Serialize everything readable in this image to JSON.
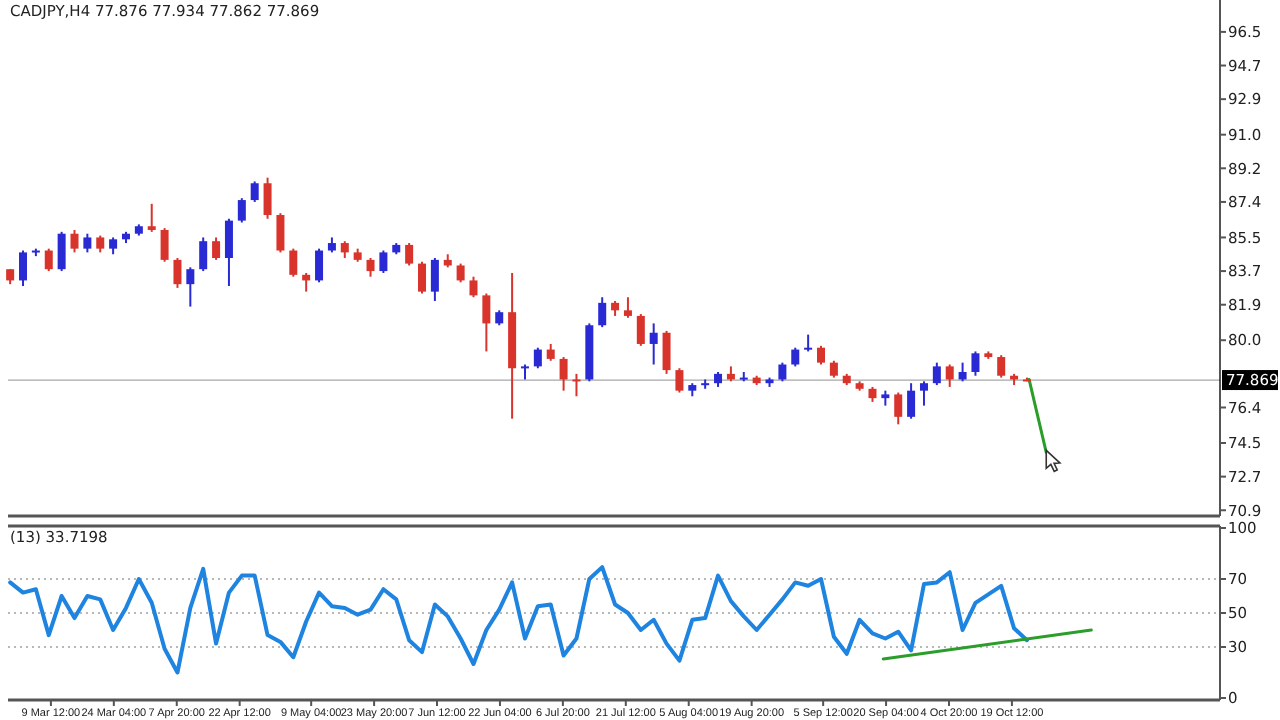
{
  "chart_data": [
    {
      "type": "candlestick",
      "title": "CADJPY,H4  77.876 77.934 77.862 77.869",
      "xlim": [
        "--02-28T12:00",
        "--12-07T00:00"
      ],
      "ylim": [
        70.7,
        98.1
      ],
      "yticks": [
        96.5,
        94.7,
        92.9,
        {
          "value": 91.0,
          "label": "91.0"
        },
        89.2,
        87.4,
        85.5,
        83.7,
        81.9,
        {
          "value": 80.0,
          "label": "80.0"
        },
        76.4,
        74.5,
        72.7,
        70.9
      ],
      "tick_labels": "y",
      "ref_lines": [
        {
          "axis": "y",
          "value": 77.869,
          "label": "77.869",
          "color": "#000000"
        }
      ],
      "series": [
        {
          "type": "candlestick",
          "x": [
            "--02-29",
            "--03-03",
            "--03-06",
            "--03-09",
            "--03-12",
            "--03-15",
            "--03-18",
            "--03-21",
            "--03-24",
            "--03-27",
            "--03-30",
            "--04-02",
            "--04-05",
            "--04-08",
            "--04-11",
            "--04-14",
            "--04-17",
            "--04-20",
            "--04-23",
            "--04-26",
            "--04-29",
            "--05-02",
            "--05-05",
            "--05-08",
            "--05-11",
            "--05-14",
            "--05-17",
            "--05-20",
            "--05-23",
            "--05-26",
            "--05-29",
            "--06-01",
            "--06-04",
            "--06-07",
            "--06-10",
            "--06-13",
            "--06-16",
            "--06-19",
            "--06-22",
            "--06-25",
            "--06-28",
            "--07-01",
            "--07-04",
            "--07-07",
            "--07-10",
            "--07-13",
            "--07-16",
            "--07-19",
            "--07-22",
            "--07-25",
            "--07-28",
            "--07-31",
            "--08-03",
            "--08-06",
            "--08-09",
            "--08-12",
            "--08-15",
            "--08-18",
            "--08-21",
            "--08-24",
            "--08-27",
            "--08-30",
            "--09-02",
            "--09-05",
            "--09-08",
            "--09-11",
            "--09-14",
            "--09-17",
            "--09-20",
            "--09-23",
            "--09-26",
            "--09-29",
            "--10-02",
            "--10-05",
            "--10-08",
            "--10-11",
            "--10-14",
            "--10-17",
            "--10-20",
            "--10-23"
          ],
          "ohlc": [
            [
              83.8,
              83.8,
              83.0,
              83.2
            ],
            [
              83.2,
              84.8,
              82.9,
              84.7
            ],
            [
              84.7,
              84.9,
              84.5,
              84.8
            ],
            [
              84.8,
              84.9,
              83.7,
              83.8
            ],
            [
              83.8,
              85.8,
              83.7,
              85.7
            ],
            [
              85.7,
              85.9,
              84.7,
              84.9
            ],
            [
              84.9,
              85.7,
              84.7,
              85.5
            ],
            [
              85.5,
              85.6,
              84.7,
              84.9
            ],
            [
              84.9,
              85.5,
              84.6,
              85.4
            ],
            [
              85.4,
              85.8,
              85.2,
              85.7
            ],
            [
              85.7,
              86.2,
              85.6,
              86.1
            ],
            [
              86.1,
              87.3,
              85.8,
              85.9
            ],
            [
              85.9,
              86.0,
              84.2,
              84.3
            ],
            [
              84.3,
              84.4,
              82.8,
              83.0
            ],
            [
              83.0,
              83.9,
              81.8,
              83.8
            ],
            [
              83.8,
              85.5,
              83.7,
              85.3
            ],
            [
              85.3,
              85.5,
              84.3,
              84.4
            ],
            [
              84.4,
              86.5,
              82.9,
              86.4
            ],
            [
              86.4,
              87.6,
              86.3,
              87.5
            ],
            [
              87.5,
              88.5,
              87.4,
              88.4
            ],
            [
              88.4,
              88.7,
              86.5,
              86.7
            ],
            [
              86.7,
              86.8,
              84.7,
              84.8
            ],
            [
              84.8,
              84.9,
              83.4,
              83.5
            ],
            [
              83.5,
              83.6,
              82.6,
              83.2
            ],
            [
              83.2,
              84.9,
              83.1,
              84.8
            ],
            [
              84.8,
              85.5,
              84.7,
              85.2
            ],
            [
              85.2,
              85.3,
              84.4,
              84.7
            ],
            [
              84.7,
              84.9,
              84.2,
              84.3
            ],
            [
              84.3,
              84.4,
              83.4,
              83.7
            ],
            [
              83.7,
              84.8,
              83.6,
              84.7
            ],
            [
              84.7,
              85.2,
              84.6,
              85.1
            ],
            [
              85.1,
              85.2,
              84.0,
              84.1
            ],
            [
              84.1,
              84.2,
              82.5,
              82.6
            ],
            [
              82.6,
              84.4,
              82.1,
              84.3
            ],
            [
              84.3,
              84.6,
              83.9,
              84.0
            ],
            [
              84.0,
              84.1,
              83.1,
              83.2
            ],
            [
              83.2,
              83.4,
              82.3,
              82.4
            ],
            [
              82.4,
              82.5,
              79.4,
              80.9
            ],
            [
              80.9,
              81.6,
              80.8,
              81.5
            ],
            [
              81.5,
              83.6,
              75.8,
              78.5
            ],
            [
              78.5,
              78.7,
              77.9,
              78.6
            ],
            [
              78.6,
              79.6,
              78.5,
              79.5
            ],
            [
              79.5,
              79.8,
              78.9,
              79.0
            ],
            [
              79.0,
              79.1,
              77.3,
              77.9
            ],
            [
              77.9,
              78.2,
              77.0,
              77.9
            ],
            [
              77.9,
              80.9,
              77.8,
              80.8
            ],
            [
              80.8,
              82.3,
              80.7,
              82.0
            ],
            [
              82.0,
              82.1,
              81.3,
              81.6
            ],
            [
              81.6,
              82.3,
              81.2,
              81.3
            ],
            [
              81.3,
              81.4,
              79.7,
              79.8
            ],
            [
              79.8,
              80.9,
              78.7,
              80.4
            ],
            [
              80.4,
              80.5,
              78.2,
              78.4
            ],
            [
              78.4,
              78.5,
              77.2,
              77.3
            ],
            [
              77.3,
              77.7,
              77.0,
              77.6
            ],
            [
              77.6,
              77.9,
              77.4,
              77.7
            ],
            [
              77.7,
              78.3,
              77.5,
              78.2
            ],
            [
              78.2,
              78.6,
              77.8,
              77.9
            ],
            [
              77.9,
              78.3,
              77.8,
              78.0
            ],
            [
              78.0,
              78.1,
              77.6,
              77.7
            ],
            [
              77.7,
              78.0,
              77.5,
              77.9
            ],
            [
              77.9,
              78.8,
              77.8,
              78.7
            ],
            [
              78.7,
              79.6,
              78.6,
              79.5
            ],
            [
              79.5,
              80.3,
              79.4,
              79.6
            ],
            [
              79.6,
              79.7,
              78.7,
              78.8
            ],
            [
              78.8,
              78.9,
              78.0,
              78.1
            ],
            [
              78.1,
              78.2,
              77.6,
              77.7
            ],
            [
              77.7,
              77.8,
              77.3,
              77.4
            ],
            [
              77.4,
              77.5,
              76.7,
              76.9
            ],
            [
              76.9,
              77.3,
              76.5,
              77.1
            ],
            [
              77.1,
              77.2,
              75.5,
              75.9
            ],
            [
              75.9,
              77.7,
              75.8,
              77.3
            ],
            [
              77.3,
              77.8,
              76.5,
              77.7
            ],
            [
              77.7,
              78.8,
              77.6,
              78.6
            ],
            [
              78.6,
              78.7,
              77.5,
              77.9
            ],
            [
              77.9,
              78.8,
              77.8,
              78.3
            ],
            [
              78.3,
              79.4,
              78.1,
              79.3
            ],
            [
              79.3,
              79.4,
              79.0,
              79.1
            ],
            [
              79.1,
              79.2,
              78.0,
              78.1
            ],
            [
              78.1,
              78.2,
              77.6,
              77.9
            ],
            [
              77.9,
              78.0,
              77.8,
              77.9
            ]
          ],
          "colors": [
            "#d8342c",
            "#2a2ad4",
            "#2a2ad4",
            "#d8342c",
            "#2a2ad4",
            "#d8342c",
            "#2a2ad4",
            "#d8342c",
            "#2a2ad4",
            "#2a2ad4",
            "#2a2ad4",
            "#d8342c",
            "#d8342c",
            "#d8342c",
            "#2a2ad4",
            "#2a2ad4",
            "#d8342c",
            "#2a2ad4",
            "#2a2ad4",
            "#2a2ad4",
            "#d8342c",
            "#d8342c",
            "#d8342c",
            "#d8342c",
            "#2a2ad4",
            "#2a2ad4",
            "#d8342c",
            "#d8342c",
            "#d8342c",
            "#2a2ad4",
            "#2a2ad4",
            "#d8342c",
            "#d8342c",
            "#2a2ad4",
            "#d8342c",
            "#d8342c",
            "#d8342c",
            "#d8342c",
            "#2a2ad4",
            "#d8342c",
            "#2a2ad4",
            "#2a2ad4",
            "#d8342c",
            "#d8342c",
            "#d8342c",
            "#2a2ad4",
            "#2a2ad4",
            "#d8342c",
            "#d8342c",
            "#d8342c",
            "#2a2ad4",
            "#d8342c",
            "#d8342c",
            "#2a2ad4",
            "#2a2ad4",
            "#2a2ad4",
            "#d8342c",
            "#2a2ad4",
            "#d8342c",
            "#2a2ad4",
            "#2a2ad4",
            "#2a2ad4",
            "#2a2ad4",
            "#d8342c",
            "#d8342c",
            "#d8342c",
            "#d8342c",
            "#d8342c",
            "#2a2ad4",
            "#d8342c",
            "#2a2ad4",
            "#2a2ad4",
            "#2a2ad4",
            "#d8342c",
            "#2a2ad4",
            "#2a2ad4",
            "#d8342c",
            "#d8342c",
            "#d8342c",
            "#d8342c"
          ]
        },
        {
          "type": "line",
          "color": "#2a9d2a",
          "x": [
            "--10-23T12:00",
            "--10-27T12:00"
          ],
          "values": [
            77.9,
            74.0
          ]
        }
      ]
    },
    {
      "type": "line",
      "title": "(13) 33.7198",
      "xlim": [
        "--02-28T12:00",
        "--12-07T00:00"
      ],
      "xticks": [
        {
          "value": "--03-09T12:00",
          "label": "9 Mar 12:00"
        },
        {
          "value": "--03-24T04:00",
          "label": "24 Mar 04:00"
        },
        {
          "value": "--04-07T20:00",
          "label": "7 Apr 20:00"
        },
        {
          "value": "--04-22T12:00",
          "label": "22 Apr 12:00"
        },
        {
          "value": "--05-09T04:00",
          "label": "9 May 04:00"
        },
        {
          "value": "--05-23T20:00",
          "label": "23 May 20:00"
        },
        {
          "value": "--06-07T12:00",
          "label": "7 Jun 12:00"
        },
        {
          "value": "--06-22T04:00",
          "label": "22 Jun 04:00"
        },
        {
          "value": "--07-06T20:00",
          "label": "6 Jul 20:00"
        },
        {
          "value": "--07-21T12:00",
          "label": "21 Jul 12:00"
        },
        {
          "value": "--08-05T04:00",
          "label": "5 Aug 04:00"
        },
        {
          "value": "--08-19T20:00",
          "label": "19 Aug 20:00"
        },
        {
          "value": "--09-05T12:00",
          "label": "5 Sep 12:00"
        },
        {
          "value": "--09-20T04:00",
          "label": "20 Sep 04:00"
        },
        {
          "value": "--10-04T20:00",
          "label": "4 Oct 20:00"
        },
        {
          "value": "--10-19T12:00",
          "label": "19 Oct 12:00"
        }
      ],
      "ylim": [
        0,
        100
      ],
      "yticks": [
        0,
        30,
        50,
        70,
        100
      ],
      "ref_lines": [
        {
          "axis": "y",
          "value": 70,
          "color": "#b8b8b8",
          "line_style": "dotted"
        },
        {
          "axis": "y",
          "value": 50,
          "color": "#b8b8b8",
          "line_style": "dotted"
        },
        {
          "axis": "y",
          "value": 30,
          "color": "#b8b8b8",
          "line_style": "dotted"
        }
      ],
      "series": [
        {
          "type": "line",
          "color": "#1e84e0",
          "x": [
            "--02-29",
            "--03-03",
            "--03-06",
            "--03-09",
            "--03-12",
            "--03-15",
            "--03-18",
            "--03-21",
            "--03-24",
            "--03-27",
            "--03-30",
            "--04-02",
            "--04-05",
            "--04-08",
            "--04-11",
            "--04-14",
            "--04-17",
            "--04-20",
            "--04-23",
            "--04-26",
            "--04-29",
            "--05-02",
            "--05-05",
            "--05-08",
            "--05-11",
            "--05-14",
            "--05-17",
            "--05-20",
            "--05-23",
            "--05-26",
            "--05-29",
            "--06-01",
            "--06-04",
            "--06-07",
            "--06-10",
            "--06-13",
            "--06-16",
            "--06-19",
            "--06-22",
            "--06-25",
            "--06-28",
            "--07-01",
            "--07-04",
            "--07-07",
            "--07-10",
            "--07-13",
            "--07-16",
            "--07-19",
            "--07-22",
            "--07-25",
            "--07-28",
            "--07-31",
            "--08-03",
            "--08-06",
            "--08-09",
            "--08-12",
            "--08-15",
            "--08-18",
            "--08-21",
            "--08-24",
            "--08-27",
            "--08-30",
            "--09-02",
            "--09-05",
            "--09-08",
            "--09-11",
            "--09-14",
            "--09-17",
            "--09-20",
            "--09-23",
            "--09-26",
            "--09-29",
            "--10-02",
            "--10-05",
            "--10-08",
            "--10-11",
            "--10-14",
            "--10-17",
            "--10-20",
            "--10-23"
          ],
          "values": [
            68,
            62,
            64,
            37,
            60,
            47,
            60,
            58,
            40,
            53,
            70,
            56,
            29,
            15,
            53,
            76,
            32,
            62,
            72,
            72,
            37,
            33,
            24,
            45,
            62,
            54,
            53,
            49,
            52,
            64,
            58,
            34,
            27,
            55,
            48,
            35,
            20,
            40,
            52,
            68,
            35,
            54,
            55,
            25,
            35,
            70,
            77,
            55,
            50,
            40,
            46,
            32,
            22,
            46,
            47,
            72,
            57,
            48,
            40,
            49,
            58,
            68,
            66,
            70,
            36,
            26,
            46,
            38,
            35,
            39,
            28,
            67,
            68,
            74,
            40,
            56,
            61,
            66,
            41,
            34
          ]
        },
        {
          "type": "line",
          "color": "#2a9d2a",
          "x": [
            "--09-19T12:00",
            "--11-07T00:00"
          ],
          "values": [
            23,
            40
          ]
        }
      ]
    }
  ]
}
